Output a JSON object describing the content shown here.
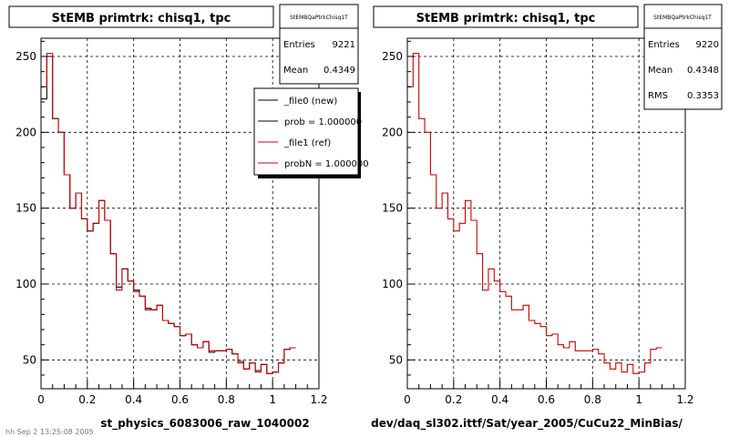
{
  "footer": "hh  Sep 2 13:25:08 2005",
  "colors": {
    "new": "#000000",
    "ref": "#cc0000"
  },
  "chart_data": [
    {
      "type": "histogram",
      "title": "StEMB primtrk: chisq1, tpc",
      "xlabel": "st_physics_6083006_raw_1040002",
      "xlim": [
        0,
        1.2
      ],
      "ylim": [
        31,
        262
      ],
      "yticks": [
        50,
        100,
        150,
        200,
        250
      ],
      "xticks": [
        "0",
        "0.2",
        "0.4",
        "0.6",
        "0.8",
        "1",
        "1.2"
      ],
      "grid": true,
      "bin_width": 0.025,
      "stats": {
        "name": "StEMBQaPtrkChisq1T",
        "entries_label": "Entries",
        "entries": "9221",
        "mean_label": "Mean",
        "mean": "0.4349"
      },
      "legend": {
        "position": "top-right",
        "entries": [
          "_file0 (new)",
          "prob = 1.000000",
          "_file1 (ref)",
          "probN = 1.000000"
        ]
      },
      "series": [
        {
          "name": "_file0 (new)",
          "color": "#000000",
          "values": [
            222,
            250,
            209,
            200,
            172,
            150,
            160,
            143,
            135,
            140,
            155,
            142,
            120,
            98,
            110,
            102,
            96,
            92,
            84,
            83,
            86,
            76,
            74,
            72,
            66,
            67,
            60,
            58,
            62,
            55,
            56,
            56,
            57,
            54,
            49,
            44,
            48,
            43,
            47,
            41,
            42,
            48,
            57,
            58
          ]
        },
        {
          "name": "_file1 (ref)",
          "color": "#cc0000",
          "values": [
            230,
            252,
            209,
            200,
            172,
            150,
            160,
            143,
            135,
            140,
            155,
            142,
            120,
            96,
            110,
            102,
            95,
            92,
            83,
            83,
            86,
            76,
            74,
            72,
            66,
            67,
            60,
            58,
            62,
            56,
            56,
            56,
            57,
            54,
            48,
            44,
            48,
            42,
            47,
            41,
            42,
            48,
            57,
            58
          ]
        }
      ]
    },
    {
      "type": "histogram",
      "title": "StEMB primtrk: chisq1, tpc",
      "xlabel": "dev/daq_sl302.ittf/Sat/year_2005/CuCu22_MinBias/",
      "xlim": [
        0,
        1.2
      ],
      "ylim": [
        31,
        262
      ],
      "yticks": [
        50,
        100,
        150,
        200,
        250
      ],
      "xticks": [
        "0",
        "0.2",
        "0.4",
        "0.6",
        "0.8",
        "1",
        "1.2"
      ],
      "grid": true,
      "bin_width": 0.025,
      "stats": {
        "name": "StEMBQaPtrkChisq1T",
        "entries_label": "Entries",
        "entries": "9220",
        "mean_label": "Mean",
        "mean": "0.4348",
        "rms_label": "RMS",
        "rms": "0.3353"
      },
      "series": [
        {
          "name": "_file1 (ref)",
          "color": "#cc0000",
          "values": [
            230,
            252,
            209,
            200,
            172,
            150,
            160,
            143,
            135,
            140,
            155,
            142,
            120,
            96,
            110,
            102,
            95,
            92,
            83,
            83,
            86,
            76,
            74,
            72,
            66,
            67,
            60,
            58,
            62,
            56,
            56,
            56,
            57,
            54,
            48,
            44,
            48,
            42,
            47,
            41,
            42,
            48,
            57,
            58
          ]
        }
      ]
    }
  ]
}
